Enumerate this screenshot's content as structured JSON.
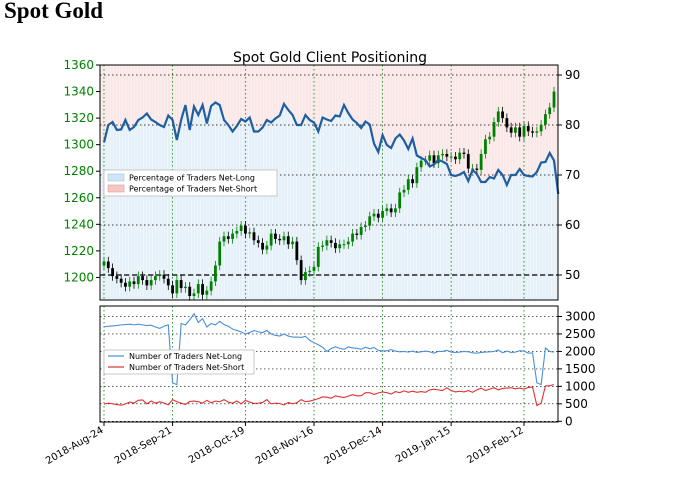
{
  "page": {
    "title": "Spot Gold"
  },
  "chart_data": [
    {
      "type": "candlestick",
      "title": "Spot Gold Client Positioning",
      "x_labels": [
        "2018-Aug-24",
        "2018-Sep-21",
        "2018-Oct-19",
        "2018-Nov-16",
        "2018-Dec-14",
        "2019-Jan-15",
        "2019-Feb-12"
      ],
      "left_axis": {
        "ticks": [
          1200,
          1220,
          1240,
          1260,
          1280,
          1300,
          1320,
          1340,
          1360
        ],
        "range": [
          1183,
          1360
        ],
        "color": "#008000"
      },
      "right_axis": {
        "ticks": [
          50,
          60,
          70,
          80,
          90
        ],
        "range": [
          45,
          92
        ]
      },
      "legend": [
        {
          "label": "Percentage of Traders Net-Long",
          "color": "#cfe4f5"
        },
        {
          "label": "Percentage of Traders Net-Short",
          "color": "#f5c6c6"
        }
      ],
      "price_series": [
        1212,
        1207,
        1201,
        1199,
        1196,
        1193,
        1197,
        1195,
        1201,
        1198,
        1194,
        1198,
        1201,
        1202,
        1199,
        1194,
        1188,
        1198,
        1192,
        1193,
        1186,
        1188,
        1195,
        1187,
        1190,
        1197,
        1209,
        1227,
        1231,
        1229,
        1233,
        1235,
        1239,
        1233,
        1234,
        1228,
        1226,
        1221,
        1224,
        1233,
        1229,
        1228,
        1231,
        1225,
        1227,
        1213,
        1198,
        1204,
        1205,
        1208,
        1223,
        1224,
        1228,
        1226,
        1222,
        1225,
        1225,
        1227,
        1233,
        1232,
        1238,
        1239,
        1246,
        1248,
        1245,
        1250,
        1252,
        1249,
        1252,
        1264,
        1266,
        1274,
        1271,
        1283,
        1288,
        1288,
        1292,
        1286,
        1292,
        1293,
        1291,
        1291,
        1289,
        1294,
        1293,
        1282,
        1282,
        1281,
        1293,
        1304,
        1306,
        1317,
        1325,
        1320,
        1313,
        1309,
        1313,
        1306,
        1314,
        1310,
        1309,
        1310,
        1315,
        1323,
        1328,
        1340
      ],
      "long_pct_series": [
        76.5,
        80,
        80.6,
        79,
        79.1,
        81,
        79,
        79.6,
        81,
        81.5,
        82.3,
        81.1,
        80.6,
        80,
        79.6,
        81.9,
        81,
        77,
        81,
        84,
        79,
        83.7,
        82,
        84,
        80.3,
        83.8,
        84.5,
        84,
        81,
        80,
        78.7,
        79.8,
        81.2,
        80.7,
        81.5,
        78.7,
        78.7,
        79.5,
        81,
        80.5,
        81.3,
        81.9,
        84.2,
        83,
        82,
        80,
        80,
        82,
        81,
        80.5,
        78.7,
        81.5,
        81.1,
        80.8,
        81.9,
        81.7,
        84,
        82.4,
        81.1,
        80.4,
        79.4,
        80.7,
        80.1,
        76.3,
        74.6,
        78,
        76,
        75.4,
        77.3,
        78.1,
        76.9,
        75.2,
        77.3,
        73.9,
        73.4,
        73,
        71.7,
        72.1,
        73,
        72.7,
        72.2,
        70,
        69.8,
        70.1,
        70.6,
        68.8,
        71,
        70.2,
        68.6,
        68.6,
        69.6,
        69.3,
        71,
        70,
        68,
        70,
        70,
        71.2,
        70,
        69.8,
        69.7,
        70.6,
        72.5,
        72.6,
        74.4,
        72.9,
        66.2
      ],
      "net_long_traders": [
        2700,
        2720,
        2730,
        2740,
        2760,
        2770,
        2780,
        2760,
        2780,
        2760,
        2740,
        2750,
        2700,
        2660,
        2720,
        2760,
        1100,
        1050,
        2800,
        2760,
        2900,
        3080,
        2830,
        2940,
        2700,
        2800,
        2760,
        2860,
        2770,
        2720,
        2640,
        2600,
        2560,
        2500,
        2540,
        2600,
        2560,
        2540,
        2600,
        2500,
        2460,
        2440,
        2500,
        2440,
        2410,
        2410,
        2400,
        2430,
        2320,
        2250,
        2190,
        2120,
        2000,
        2080,
        2130,
        2090,
        2060,
        2130,
        2100,
        2090,
        2060,
        2120,
        2080,
        2110,
        2030,
        2010,
        2020,
        2050,
        2010,
        1990,
        2000,
        1980,
        2010,
        1970,
        1990,
        2010,
        1990,
        1950,
        2000,
        2000,
        2030,
        1980,
        1970,
        1980,
        2000,
        1990,
        1960,
        1950,
        1970,
        1980,
        1990,
        2000,
        2040,
        1960,
        2010,
        1970,
        1980,
        2020,
        2010,
        1950,
        1960,
        1100,
        1050,
        2100,
        2000,
        1980
      ],
      "net_short_traders": [
        490,
        520,
        500,
        480,
        460,
        500,
        550,
        520,
        600,
        610,
        500,
        580,
        520,
        560,
        520,
        470,
        620,
        560,
        520,
        480,
        570,
        580,
        560,
        520,
        600,
        530,
        580,
        560,
        620,
        550,
        520,
        580,
        500,
        600,
        550,
        510,
        520,
        540,
        620,
        500,
        520,
        510,
        470,
        540,
        500,
        530,
        620,
        560,
        580,
        610,
        650,
        700,
        690,
        660,
        730,
        700,
        680,
        720,
        760,
        730,
        730,
        820,
        820,
        770,
        810,
        840,
        820,
        780,
        850,
        820,
        870,
        830,
        860,
        830,
        850,
        830,
        900,
        920,
        900,
        880,
        960,
        880,
        840,
        860,
        840,
        880,
        830,
        900,
        950,
        880,
        920,
        960,
        900,
        940,
        950,
        960,
        930,
        950,
        920,
        970,
        980,
        450,
        520,
        1010,
        1020,
        1050
      ],
      "bottom_axis": {
        "ticks": [
          0,
          500,
          1000,
          1500,
          2000,
          2500,
          3000
        ],
        "range": [
          -20,
          3300
        ]
      },
      "bottom_legend": [
        {
          "label": "Number of Traders Net-Long",
          "color": "#4a90d9"
        },
        {
          "label": "Number of Traders Net-Short",
          "color": "#e03030"
        }
      ]
    }
  ]
}
